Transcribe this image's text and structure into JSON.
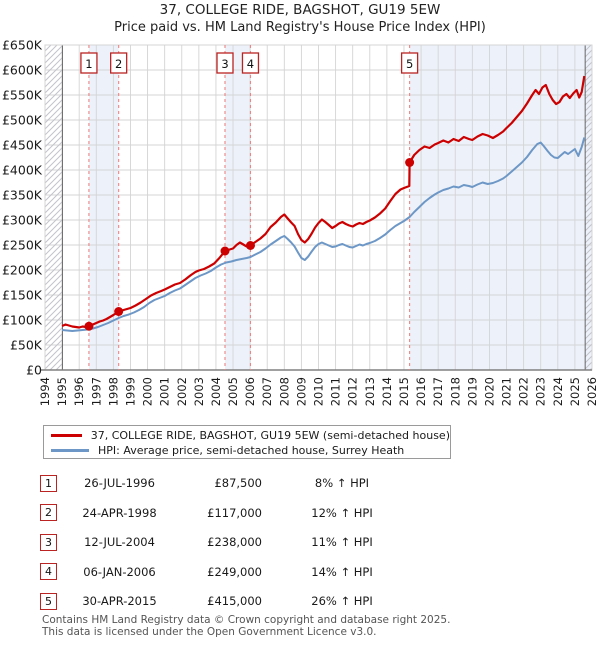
{
  "title": "37, COLLEGE RIDE, BAGSHOT, GU19 5EW",
  "subtitle": "Price paid vs. HM Land Registry's House Price Index (HPI)",
  "chart_data": {
    "type": "line",
    "title": "37, COLLEGE RIDE, BAGSHOT, GU19 5EW",
    "xlabel": "",
    "ylabel": "Price (GBP)",
    "x_ticks": [
      1994,
      1995,
      1996,
      1997,
      1998,
      1999,
      2000,
      2001,
      2002,
      2003,
      2004,
      2005,
      2006,
      2007,
      2008,
      2009,
      2010,
      2011,
      2012,
      2013,
      2014,
      2015,
      2016,
      2017,
      2018,
      2019,
      2020,
      2021,
      2022,
      2023,
      2024,
      2025,
      2026
    ],
    "xlim": [
      1994,
      2026
    ],
    "ylim_k": [
      0,
      650
    ],
    "y_tick_values_k": [
      0,
      50,
      100,
      150,
      200,
      250,
      300,
      350,
      400,
      450,
      500,
      550,
      600,
      650
    ],
    "y_tick_labels": [
      "£0",
      "£50K",
      "£100K",
      "£150K",
      "£200K",
      "£250K",
      "£300K",
      "£350K",
      "£400K",
      "£450K",
      "£500K",
      "£550K",
      "£600K",
      "£650K"
    ],
    "grid": true,
    "legend_position": "below",
    "colors": {
      "property": "#cc0000",
      "hpi": "#6d97c6",
      "sale_dashed_line": "#f08484",
      "marker_box_border": "#bb2222",
      "band_fill": "#edf2fa",
      "grid": "#d4d4d4",
      "axis": "#808080",
      "hatch": "#c3c3cb",
      "hatch_edge": "#666666"
    },
    "shaded_bands_years": [
      [
        1996.57,
        1998.31
      ],
      [
        2004.53,
        2006.02
      ],
      [
        2015.33,
        2026
      ]
    ],
    "no_data_hatch_years": [
      [
        1994,
        1995.02
      ],
      [
        2025.6,
        2026
      ]
    ],
    "series": [
      {
        "name": "37, COLLEGE RIDE, BAGSHOT, GU19 5EW (semi-detached house)",
        "color": "#cc0000",
        "points_year_valueK": [
          [
            1995.0,
            88
          ],
          [
            1995.2,
            91
          ],
          [
            1995.4,
            89
          ],
          [
            1995.6,
            87
          ],
          [
            1995.8,
            86
          ],
          [
            1996.0,
            85
          ],
          [
            1996.2,
            87
          ],
          [
            1996.4,
            86
          ],
          [
            1996.57,
            87.5
          ],
          [
            1996.8,
            91
          ],
          [
            1997.0,
            94
          ],
          [
            1997.2,
            97
          ],
          [
            1997.4,
            99
          ],
          [
            1997.6,
            102
          ],
          [
            1997.8,
            106
          ],
          [
            1998.0,
            110
          ],
          [
            1998.31,
            117
          ],
          [
            1998.5,
            119
          ],
          [
            1998.7,
            121
          ],
          [
            1999.0,
            124
          ],
          [
            1999.3,
            129
          ],
          [
            1999.6,
            135
          ],
          [
            1999.9,
            142
          ],
          [
            2000.2,
            149
          ],
          [
            2000.5,
            154
          ],
          [
            2000.8,
            158
          ],
          [
            2001.0,
            161
          ],
          [
            2001.3,
            166
          ],
          [
            2001.6,
            171
          ],
          [
            2001.9,
            174
          ],
          [
            2002.2,
            181
          ],
          [
            2002.5,
            189
          ],
          [
            2002.8,
            196
          ],
          [
            2003.0,
            199
          ],
          [
            2003.3,
            202
          ],
          [
            2003.6,
            207
          ],
          [
            2003.9,
            213
          ],
          [
            2004.2,
            224
          ],
          [
            2004.53,
            238
          ],
          [
            2004.8,
            241
          ],
          [
            2005.0,
            243
          ],
          [
            2005.2,
            250
          ],
          [
            2005.4,
            255
          ],
          [
            2005.6,
            251
          ],
          [
            2005.8,
            247
          ],
          [
            2006.02,
            249
          ],
          [
            2006.3,
            256
          ],
          [
            2006.6,
            263
          ],
          [
            2006.9,
            272
          ],
          [
            2007.2,
            286
          ],
          [
            2007.5,
            295
          ],
          [
            2007.8,
            306
          ],
          [
            2008.0,
            311
          ],
          [
            2008.2,
            303
          ],
          [
            2008.4,
            295
          ],
          [
            2008.6,
            288
          ],
          [
            2008.8,
            272
          ],
          [
            2009.0,
            260
          ],
          [
            2009.2,
            255
          ],
          [
            2009.4,
            262
          ],
          [
            2009.6,
            273
          ],
          [
            2009.8,
            285
          ],
          [
            2010.0,
            294
          ],
          [
            2010.2,
            301
          ],
          [
            2010.4,
            296
          ],
          [
            2010.6,
            290
          ],
          [
            2010.8,
            284
          ],
          [
            2011.0,
            288
          ],
          [
            2011.2,
            293
          ],
          [
            2011.4,
            296
          ],
          [
            2011.6,
            292
          ],
          [
            2011.8,
            289
          ],
          [
            2012.0,
            287
          ],
          [
            2012.2,
            291
          ],
          [
            2012.4,
            294
          ],
          [
            2012.6,
            292
          ],
          [
            2012.8,
            296
          ],
          [
            2013.0,
            299
          ],
          [
            2013.3,
            305
          ],
          [
            2013.6,
            313
          ],
          [
            2013.9,
            323
          ],
          [
            2014.2,
            338
          ],
          [
            2014.5,
            352
          ],
          [
            2014.8,
            361
          ],
          [
            2015.0,
            364
          ],
          [
            2015.31,
            368
          ],
          [
            2015.33,
            415
          ],
          [
            2015.6,
            430
          ],
          [
            2015.9,
            440
          ],
          [
            2016.2,
            447
          ],
          [
            2016.5,
            444
          ],
          [
            2016.8,
            451
          ],
          [
            2017.0,
            454
          ],
          [
            2017.3,
            459
          ],
          [
            2017.6,
            455
          ],
          [
            2017.9,
            462
          ],
          [
            2018.2,
            458
          ],
          [
            2018.5,
            466
          ],
          [
            2018.8,
            462
          ],
          [
            2019.0,
            460
          ],
          [
            2019.3,
            467
          ],
          [
            2019.6,
            472
          ],
          [
            2019.9,
            469
          ],
          [
            2020.2,
            464
          ],
          [
            2020.5,
            470
          ],
          [
            2020.8,
            477
          ],
          [
            2021.0,
            484
          ],
          [
            2021.3,
            494
          ],
          [
            2021.6,
            506
          ],
          [
            2021.9,
            518
          ],
          [
            2022.2,
            533
          ],
          [
            2022.5,
            550
          ],
          [
            2022.7,
            560
          ],
          [
            2022.9,
            552
          ],
          [
            2023.1,
            565
          ],
          [
            2023.3,
            570
          ],
          [
            2023.5,
            552
          ],
          [
            2023.7,
            540
          ],
          [
            2023.9,
            532
          ],
          [
            2024.1,
            536
          ],
          [
            2024.3,
            547
          ],
          [
            2024.5,
            552
          ],
          [
            2024.7,
            544
          ],
          [
            2024.9,
            553
          ],
          [
            2025.1,
            560
          ],
          [
            2025.25,
            545
          ],
          [
            2025.4,
            556
          ],
          [
            2025.55,
            588
          ]
        ]
      },
      {
        "name": "HPI: Average price, semi-detached house, Surrey Heath",
        "color": "#6d97c6",
        "points_year_valueK": [
          [
            1995.0,
            80
          ],
          [
            1995.3,
            79
          ],
          [
            1995.6,
            78
          ],
          [
            1995.9,
            79
          ],
          [
            1996.2,
            80
          ],
          [
            1996.5,
            81
          ],
          [
            1996.8,
            83
          ],
          [
            1997.1,
            86
          ],
          [
            1997.4,
            90
          ],
          [
            1997.7,
            94
          ],
          [
            1998.0,
            99
          ],
          [
            1998.31,
            104
          ],
          [
            1998.6,
            108
          ],
          [
            1998.9,
            111
          ],
          [
            1999.2,
            115
          ],
          [
            1999.5,
            120
          ],
          [
            1999.8,
            126
          ],
          [
            2000.1,
            134
          ],
          [
            2000.4,
            140
          ],
          [
            2000.7,
            144
          ],
          [
            2001.0,
            148
          ],
          [
            2001.3,
            154
          ],
          [
            2001.6,
            159
          ],
          [
            2001.9,
            163
          ],
          [
            2002.2,
            170
          ],
          [
            2002.5,
            177
          ],
          [
            2002.8,
            184
          ],
          [
            2003.1,
            189
          ],
          [
            2003.4,
            193
          ],
          [
            2003.7,
            198
          ],
          [
            2004.0,
            205
          ],
          [
            2004.3,
            211
          ],
          [
            2004.6,
            215
          ],
          [
            2004.9,
            217
          ],
          [
            2005.2,
            220
          ],
          [
            2005.5,
            222
          ],
          [
            2005.8,
            224
          ],
          [
            2006.02,
            226
          ],
          [
            2006.3,
            231
          ],
          [
            2006.6,
            236
          ],
          [
            2006.9,
            243
          ],
          [
            2007.2,
            251
          ],
          [
            2007.5,
            258
          ],
          [
            2007.8,
            265
          ],
          [
            2008.0,
            268
          ],
          [
            2008.2,
            262
          ],
          [
            2008.4,
            255
          ],
          [
            2008.6,
            247
          ],
          [
            2008.8,
            235
          ],
          [
            2009.0,
            224
          ],
          [
            2009.2,
            220
          ],
          [
            2009.4,
            227
          ],
          [
            2009.6,
            237
          ],
          [
            2009.8,
            246
          ],
          [
            2010.0,
            252
          ],
          [
            2010.2,
            255
          ],
          [
            2010.4,
            252
          ],
          [
            2010.6,
            249
          ],
          [
            2010.8,
            246
          ],
          [
            2011.0,
            247
          ],
          [
            2011.2,
            250
          ],
          [
            2011.4,
            252
          ],
          [
            2011.6,
            249
          ],
          [
            2011.8,
            246
          ],
          [
            2012.0,
            245
          ],
          [
            2012.2,
            248
          ],
          [
            2012.4,
            251
          ],
          [
            2012.6,
            249
          ],
          [
            2012.8,
            252
          ],
          [
            2013.0,
            254
          ],
          [
            2013.3,
            258
          ],
          [
            2013.6,
            264
          ],
          [
            2013.9,
            271
          ],
          [
            2014.2,
            280
          ],
          [
            2014.5,
            288
          ],
          [
            2014.8,
            294
          ],
          [
            2015.0,
            298
          ],
          [
            2015.33,
            306
          ],
          [
            2015.6,
            316
          ],
          [
            2015.9,
            326
          ],
          [
            2016.2,
            336
          ],
          [
            2016.5,
            344
          ],
          [
            2016.8,
            351
          ],
          [
            2017.0,
            355
          ],
          [
            2017.3,
            360
          ],
          [
            2017.6,
            363
          ],
          [
            2017.9,
            367
          ],
          [
            2018.2,
            365
          ],
          [
            2018.5,
            370
          ],
          [
            2018.8,
            368
          ],
          [
            2019.0,
            366
          ],
          [
            2019.3,
            371
          ],
          [
            2019.6,
            375
          ],
          [
            2019.9,
            372
          ],
          [
            2020.2,
            374
          ],
          [
            2020.5,
            378
          ],
          [
            2020.8,
            383
          ],
          [
            2021.0,
            388
          ],
          [
            2021.3,
            397
          ],
          [
            2021.6,
            406
          ],
          [
            2021.9,
            415
          ],
          [
            2022.2,
            426
          ],
          [
            2022.5,
            440
          ],
          [
            2022.8,
            452
          ],
          [
            2023.0,
            455
          ],
          [
            2023.2,
            447
          ],
          [
            2023.4,
            438
          ],
          [
            2023.6,
            430
          ],
          [
            2023.8,
            425
          ],
          [
            2024.0,
            424
          ],
          [
            2024.2,
            430
          ],
          [
            2024.4,
            436
          ],
          [
            2024.6,
            432
          ],
          [
            2024.8,
            437
          ],
          [
            2025.0,
            442
          ],
          [
            2025.2,
            428
          ],
          [
            2025.4,
            446
          ],
          [
            2025.55,
            465
          ]
        ]
      }
    ],
    "sales_markers": [
      {
        "num": "1",
        "year": 1996.57,
        "price_k": 87.5
      },
      {
        "num": "2",
        "year": 1998.31,
        "price_k": 117
      },
      {
        "num": "3",
        "year": 2004.53,
        "price_k": 238
      },
      {
        "num": "4",
        "year": 2006.02,
        "price_k": 249
      },
      {
        "num": "5",
        "year": 2015.33,
        "price_k": 415
      }
    ]
  },
  "legend": {
    "items": [
      {
        "label": "37, COLLEGE RIDE, BAGSHOT, GU19 5EW (semi-detached house)",
        "color": "#cc0000"
      },
      {
        "label": "HPI: Average price, semi-detached house, Surrey Heath",
        "color": "#6d97c6"
      }
    ]
  },
  "table": {
    "rows": [
      {
        "num": "1",
        "date": "26-JUL-1996",
        "price": "£87,500",
        "hpi": "8% ↑ HPI"
      },
      {
        "num": "2",
        "date": "24-APR-1998",
        "price": "£117,000",
        "hpi": "12% ↑ HPI"
      },
      {
        "num": "3",
        "date": "12-JUL-2004",
        "price": "£238,000",
        "hpi": "11% ↑ HPI"
      },
      {
        "num": "4",
        "date": "06-JAN-2006",
        "price": "£249,000",
        "hpi": "14% ↑ HPI"
      },
      {
        "num": "5",
        "date": "30-APR-2015",
        "price": "£415,000",
        "hpi": "26% ↑ HPI"
      }
    ]
  },
  "footer": {
    "line1": "Contains HM Land Registry data © Crown copyright and database right 2025.",
    "line2": "This data is licensed under the Open Government Licence v3.0."
  }
}
